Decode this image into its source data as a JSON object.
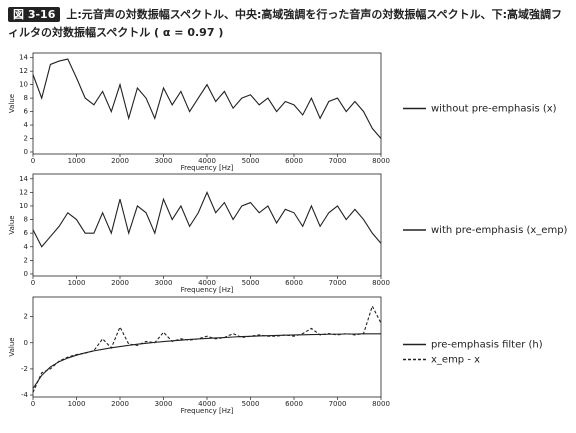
{
  "figure": {
    "label": "図 3-16",
    "caption": "上:元音声の対数振幅スペクトル、中央:高域強調を行った音声の対数振幅スペクトル、下:高域強調フィルタの対数振幅スペクトル ( α = 0.97 )"
  },
  "chart_data": [
    {
      "type": "line",
      "xlabel": "Frequency [Hz]",
      "ylabel": "Value",
      "legend": "outside right",
      "x": [
        0,
        200,
        400,
        600,
        800,
        1000,
        1200,
        1400,
        1600,
        1800,
        2000,
        2200,
        2400,
        2600,
        2800,
        3000,
        3200,
        3400,
        3600,
        3800,
        4000,
        4200,
        4400,
        4600,
        4800,
        5000,
        5200,
        5400,
        5600,
        5800,
        6000,
        6200,
        6400,
        6600,
        6800,
        7000,
        7200,
        7400,
        7600,
        7800,
        8000
      ],
      "series": [
        {
          "name": "without pre-emphasis (x)",
          "color": "#222222",
          "linestyle": "solid",
          "values": [
            11.5,
            8,
            13,
            13.5,
            13.8,
            11,
            8,
            7,
            9,
            6,
            10,
            5,
            9.5,
            8,
            5,
            9.5,
            7,
            9,
            6,
            8,
            10,
            7.5,
            9,
            6.5,
            8,
            8.5,
            7,
            8,
            6,
            7.5,
            7,
            5.5,
            8,
            5,
            7.5,
            8,
            6,
            7.5,
            6,
            3.5,
            2
          ]
        }
      ],
      "xlim": [
        0,
        8000
      ],
      "xticks": [
        0,
        1000,
        2000,
        3000,
        4000,
        5000,
        6000,
        7000,
        8000
      ],
      "ylim": [
        -0.3,
        14.7
      ],
      "yticks": [
        0,
        2,
        4,
        6,
        8,
        10,
        12,
        14
      ]
    },
    {
      "type": "line",
      "xlabel": "Frequency [Hz]",
      "ylabel": "Value",
      "legend": "outside right",
      "x": [
        0,
        200,
        400,
        600,
        800,
        1000,
        1200,
        1400,
        1600,
        1800,
        2000,
        2200,
        2400,
        2600,
        2800,
        3000,
        3200,
        3400,
        3600,
        3800,
        4000,
        4200,
        4400,
        4600,
        4800,
        5000,
        5200,
        5400,
        5600,
        5800,
        6000,
        6200,
        6400,
        6600,
        6800,
        7000,
        7200,
        7400,
        7600,
        7800,
        8000
      ],
      "series": [
        {
          "name": "with pre-emphasis (x_emp)",
          "color": "#222222",
          "linestyle": "solid",
          "values": [
            6.5,
            4,
            5.5,
            7,
            9,
            8,
            6,
            6,
            9,
            6,
            11,
            6,
            10,
            9,
            6,
            11,
            8,
            10,
            7,
            9,
            12,
            9,
            10.5,
            8,
            10,
            10.5,
            9,
            10,
            7.5,
            9.5,
            9,
            7,
            10,
            7,
            9,
            10,
            8,
            9.5,
            8,
            6,
            4.5
          ]
        }
      ],
      "xlim": [
        0,
        8000
      ],
      "xticks": [
        0,
        1000,
        2000,
        3000,
        4000,
        5000,
        6000,
        7000,
        8000
      ],
      "ylim": [
        -0.3,
        14.7
      ],
      "yticks": [
        0,
        2,
        4,
        6,
        8,
        10,
        12,
        14
      ]
    },
    {
      "type": "line",
      "xlabel": "Frequency [Hz]",
      "ylabel": "Value",
      "legend": "outside right",
      "x": [
        0,
        200,
        400,
        600,
        800,
        1000,
        1200,
        1400,
        1600,
        1800,
        2000,
        2200,
        2400,
        2600,
        2800,
        3000,
        3200,
        3400,
        3600,
        3800,
        4000,
        4200,
        4400,
        4600,
        4800,
        5000,
        5200,
        5400,
        5600,
        5800,
        6000,
        6200,
        6400,
        6600,
        6800,
        7000,
        7200,
        7400,
        7600,
        7800,
        8000
      ],
      "series": [
        {
          "name": "pre-emphasis filter (h)",
          "color": "#222222",
          "linestyle": "solid",
          "values": [
            -3.5,
            -2.49,
            -1.85,
            -1.45,
            -1.17,
            -0.95,
            -0.77,
            -0.62,
            -0.5,
            -0.39,
            -0.29,
            -0.2,
            -0.11,
            -0.04,
            0.03,
            0.09,
            0.15,
            0.2,
            0.25,
            0.29,
            0.33,
            0.37,
            0.4,
            0.44,
            0.47,
            0.49,
            0.52,
            0.54,
            0.56,
            0.58,
            0.6,
            0.61,
            0.63,
            0.64,
            0.65,
            0.66,
            0.67,
            0.67,
            0.68,
            0.68,
            0.68
          ]
        },
        {
          "name": "x_emp - x",
          "color": "#222222",
          "linestyle": "dashed",
          "values": [
            -3.8,
            -2.3,
            -2,
            -1.4,
            -1.1,
            -0.9,
            -0.8,
            -0.6,
            0.3,
            -0.4,
            1.2,
            -0.1,
            -0.2,
            0.1,
            0,
            0.8,
            0.1,
            0.3,
            0.2,
            0.3,
            0.5,
            0.3,
            0.4,
            0.7,
            0.4,
            0.5,
            0.6,
            0.5,
            0.5,
            0.6,
            0.5,
            0.7,
            1.1,
            0.6,
            0.7,
            0.6,
            0.7,
            0.6,
            0.7,
            2.8,
            1.5
          ]
        }
      ],
      "xlim": [
        0,
        8000
      ],
      "xticks": [
        0,
        1000,
        2000,
        3000,
        4000,
        5000,
        6000,
        7000,
        8000
      ],
      "ylim": [
        -4.15,
        3.5
      ],
      "yticks": [
        -4,
        -2,
        0,
        2
      ]
    }
  ]
}
